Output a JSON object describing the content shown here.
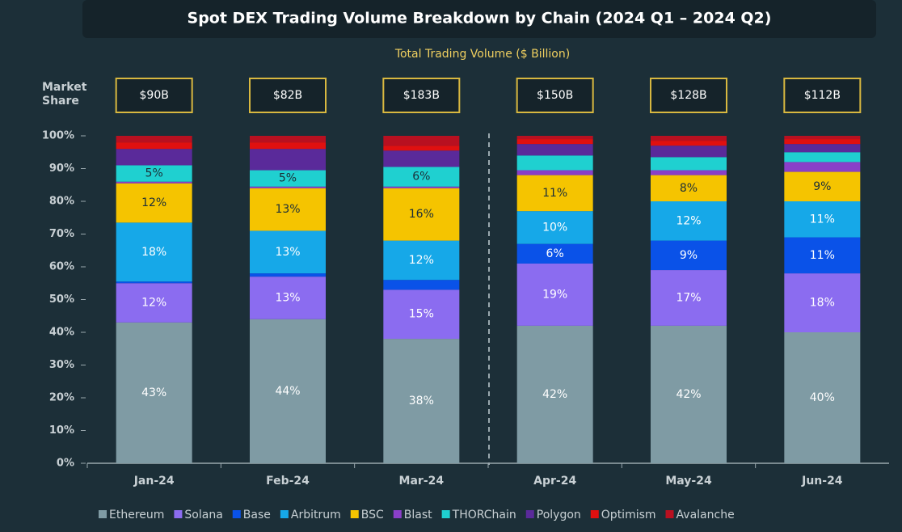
{
  "chart_data": {
    "type": "stacked_bar",
    "title": "Spot DEX Trading Volume Breakdown by Chain (2024 Q1 – 2024 Q2)",
    "subtitle": "Total Trading Volume ($ Billion)",
    "y_axis_label": "Market Share",
    "categories": [
      "Jan-24",
      "Feb-24",
      "Mar-24",
      "Apr-24",
      "May-24",
      "Jun-24"
    ],
    "totals": {
      "values": [
        90,
        82,
        183,
        150,
        128,
        112
      ],
      "value_labels": [
        "$90B",
        "$82B",
        "$183B",
        "$150B",
        "$128B",
        "$112B"
      ]
    },
    "ylim": [
      0,
      100
    ],
    "yticks": [
      {
        "value": 0,
        "label": "0%"
      },
      {
        "value": 10,
        "label": "10%"
      },
      {
        "value": 20,
        "label": "20%"
      },
      {
        "value": 30,
        "label": "30%"
      },
      {
        "value": 40,
        "label": "40%"
      },
      {
        "value": 50,
        "label": "50%"
      },
      {
        "value": 60,
        "label": "60%"
      },
      {
        "value": 70,
        "label": "70%"
      },
      {
        "value": 80,
        "label": "80%"
      },
      {
        "value": 90,
        "label": "90%"
      },
      {
        "value": 100,
        "label": "100%"
      }
    ],
    "legend": "bottom",
    "series": [
      {
        "name": "Ethereum",
        "color": "#7f9ba4",
        "values": [
          43,
          44,
          38,
          42,
          42,
          40
        ],
        "value_labels": [
          "43%",
          "44%",
          "38%",
          "42%",
          "42%",
          "40%"
        ]
      },
      {
        "name": "Solana",
        "color": "#8b6cf0",
        "values": [
          12,
          13,
          15,
          19,
          17,
          18
        ],
        "value_labels": [
          "12%",
          "13%",
          "15%",
          "19%",
          "17%",
          "18%"
        ]
      },
      {
        "name": "Base",
        "color": "#0a52e8",
        "values": [
          0.5,
          1,
          3,
          6,
          9,
          11
        ],
        "value_labels": [
          null,
          null,
          null,
          "6%",
          "9%",
          "11%"
        ]
      },
      {
        "name": "Arbitrum",
        "color": "#16a8e8",
        "values": [
          18,
          13,
          12,
          10,
          12,
          11
        ],
        "value_labels": [
          "18%",
          "13%",
          "12%",
          "10%",
          "12%",
          "11%"
        ]
      },
      {
        "name": "BSC",
        "color": "#f5c400",
        "values": [
          12,
          13,
          16,
          11,
          8,
          9
        ],
        "value_labels": [
          "12%",
          "13%",
          "16%",
          "11%",
          "8%",
          "9%"
        ]
      },
      {
        "name": "Blast",
        "color": "#8a3fc8",
        "values": [
          0.5,
          0.5,
          0.5,
          1.5,
          1.5,
          3
        ],
        "value_labels": [
          null,
          null,
          null,
          null,
          null,
          null
        ]
      },
      {
        "name": "THORChain",
        "color": "#1fd0d0",
        "values": [
          5,
          5,
          6,
          4.5,
          4,
          3
        ],
        "value_labels": [
          "5%",
          "5%",
          "6%",
          null,
          null,
          null
        ]
      },
      {
        "name": "Polygon",
        "color": "#5a2a9a",
        "values": [
          5,
          6.5,
          5,
          3.5,
          3.5,
          2.5
        ],
        "value_labels": [
          null,
          null,
          null,
          null,
          null,
          null
        ]
      },
      {
        "name": "Optimism",
        "color": "#e01010",
        "values": [
          2,
          2,
          1.5,
          1.5,
          1.5,
          1.5
        ],
        "value_labels": [
          null,
          null,
          null,
          null,
          null,
          null
        ]
      },
      {
        "name": "Avalanche",
        "color": "#b81020",
        "values": [
          2,
          2,
          3,
          1,
          1.5,
          1
        ],
        "value_labels": [
          null,
          null,
          null,
          null,
          null,
          null
        ]
      }
    ]
  }
}
